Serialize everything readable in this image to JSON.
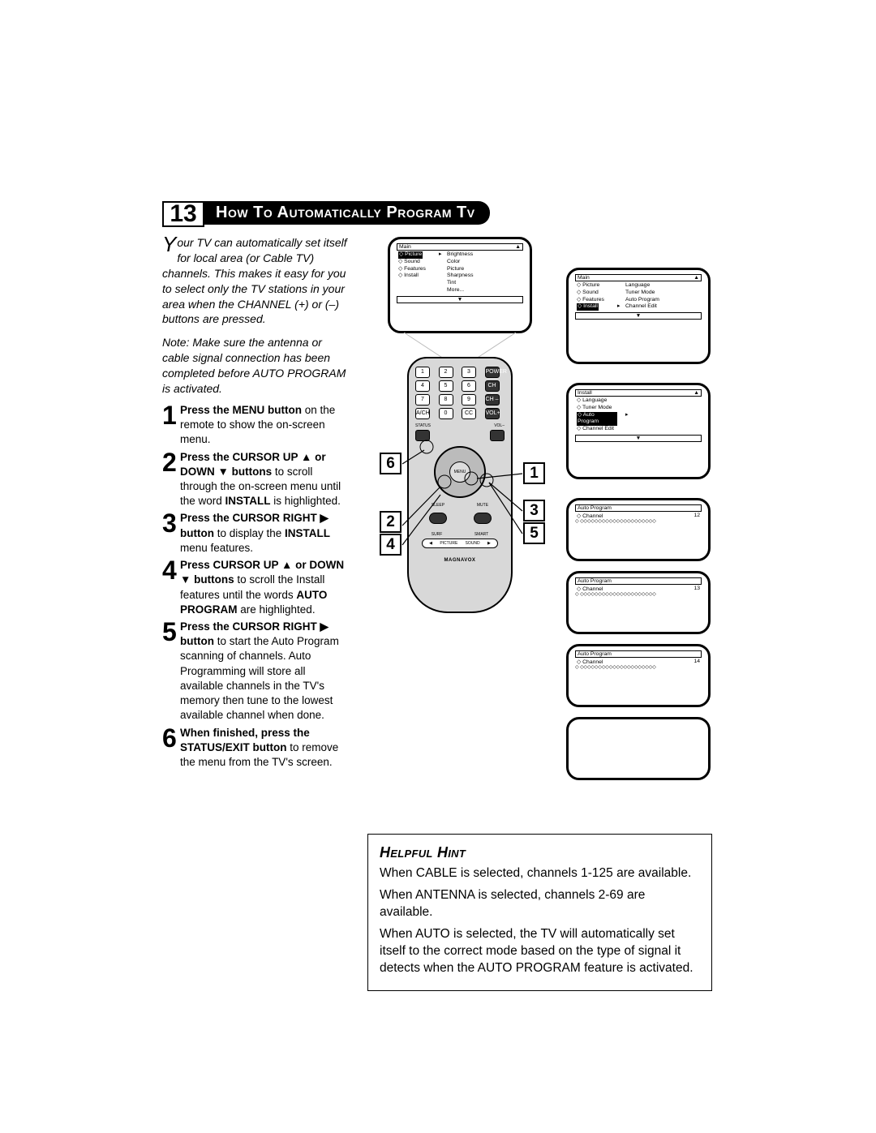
{
  "section_number": "13",
  "title": "How To Automatically Program Tv",
  "intro_dropcap": "Y",
  "intro": "our TV can automatically set itself for local area (or Cable TV) channels. This makes it easy for you to select only the TV stations in your area when the CHANNEL (+) or (–) buttons are pressed.",
  "note": "Note: Make sure the antenna or cable signal connection has been completed before AUTO PROGRAM is activated.",
  "steps": [
    {
      "n": "1",
      "bold": "Press the MENU button",
      "rest": " on the remote to show the on-screen menu."
    },
    {
      "n": "2",
      "bold": "Press the CURSOR UP ▲ or DOWN ▼ buttons",
      "rest": " to scroll through the on-screen menu until the word ",
      "bold2": "INSTALL",
      "rest2": " is highlighted."
    },
    {
      "n": "3",
      "bold": "Press the CURSOR RIGHT ▶ button",
      "rest": " to display the ",
      "bold2": "INSTALL",
      "rest2": " menu features."
    },
    {
      "n": "4",
      "bold": "Press CURSOR UP ▲ or DOWN ▼ buttons",
      "rest": " to scroll the Install features until the words ",
      "bold2": "AUTO PROGRAM",
      "rest2": " are highlighted."
    },
    {
      "n": "5",
      "bold": "Press the CURSOR RIGHT ▶ button",
      "rest": " to start the Auto Program scanning of channels. Auto Programming will store all available channels in the TV's memory then tune to the lowest available channel when done."
    },
    {
      "n": "6",
      "bold": "When finished, press the STATUS/EXIT button",
      "rest": " to remove the menu from the TV's screen."
    }
  ],
  "callouts": [
    "6",
    "1",
    "3",
    "5",
    "2",
    "4"
  ],
  "remote_brand": "MAGNAVOX",
  "remote_keys": [
    "1",
    "2",
    "3",
    "POWER",
    "4",
    "5",
    "6",
    "CH +",
    "7",
    "8",
    "9",
    "CH –",
    "A/CH",
    "0",
    "CC",
    "VOL+"
  ],
  "remote_side_left": "STATUS",
  "remote_side_right": "VOL–",
  "remote_center": "MENU",
  "remote_bot": [
    "SLEEP",
    "MUTE"
  ],
  "remote_bot2_l": "SURF",
  "remote_bot2_r": "SMART",
  "remote_bot2_c": [
    "◀",
    "PICTURE",
    "SOUND",
    "▶"
  ],
  "screens": {
    "s1": {
      "header": "Main",
      "header_icon": "▲",
      "rows": [
        [
          "◇ Picture",
          "▸",
          "Brightness"
        ],
        [
          "◇ Sound",
          "",
          "Color"
        ],
        [
          "◇ Features",
          "",
          "Picture"
        ],
        [
          "◇ Install",
          "",
          "Sharpness"
        ],
        [
          "",
          "",
          "Tint"
        ],
        [
          "",
          "",
          "More..."
        ]
      ],
      "selected_row": 0
    },
    "s2": {
      "header": "Main",
      "header_icon": "▲",
      "rows": [
        [
          "◇ Picture",
          "",
          "Language"
        ],
        [
          "◇ Sound",
          "",
          "Tuner Mode"
        ],
        [
          "◇ Features",
          "",
          "Auto Program"
        ],
        [
          "◇ Install",
          "▸",
          "Channel Edit"
        ]
      ],
      "selected_row": 3
    },
    "s3": {
      "header": "Install",
      "header_icon": "▲",
      "rows": [
        [
          "◇ Language",
          "",
          ""
        ],
        [
          "◇ Tuner Mode",
          "",
          ""
        ],
        [
          "◇ Auto Program",
          "",
          "▸"
        ],
        [
          "◇ Channel Edit",
          "",
          ""
        ]
      ],
      "selected_row": 2
    },
    "s4": {
      "header": "Auto Program",
      "channel_label": "Channel",
      "channel": "12"
    },
    "s5": {
      "header": "Auto Program",
      "channel_label": "Channel",
      "channel": "13"
    },
    "s6": {
      "header": "Auto Program",
      "channel_label": "Channel",
      "channel": "14"
    }
  },
  "hint_title": "Helpful Hint",
  "hint_paras": [
    "When CABLE is selected, channels 1-125 are available.",
    "When ANTENNA is selected, channels 2-69 are available.",
    "When AUTO is selected, the TV will automatically set itself to the correct mode based on the type of signal it detects when the AUTO PROGRAM feature is activated."
  ]
}
